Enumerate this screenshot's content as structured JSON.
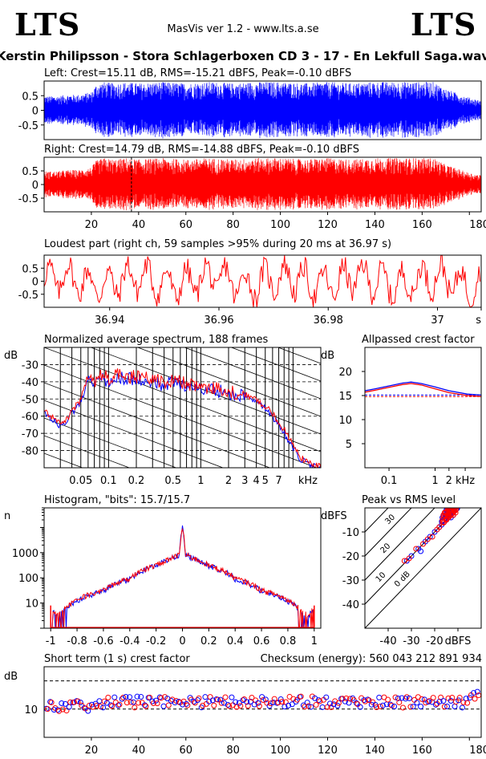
{
  "header": {
    "logo_left": "LTS",
    "logo_right": "LTS",
    "app_title": "MasVis ver 1.2 - www.lts.a.se",
    "file_title": "Kerstin Philipsson - Stora Schlagerboxen CD 3 - 17 - En Lekfull Saga.wav"
  },
  "panels": {
    "left_title": "Left: Crest=15.11 dB, RMS=-15.21 dBFS, Peak=-0.10 dBFS",
    "right_title": "Right: Crest=14.79 dB, RMS=-14.88 dBFS, Peak=-0.10 dBFS",
    "loudest_title": "Loudest part (right ch, 59 samples >95% during 20 ms at 36.97 s)",
    "spectrum_title": "Normalized average spectrum, 188 frames",
    "allpass_title": "Allpassed crest factor",
    "histogram_title": "Histogram, \"bits\": 15.7/15.7",
    "peakrms_title": "Peak vs RMS level",
    "shortterm_title": "Short term (1 s) crest factor",
    "checksum": "Checksum (energy):   560 043 212 891 934"
  },
  "chart_data": [
    {
      "id": "left",
      "type": "area",
      "title": "Left: Crest=15.11 dB, RMS=-15.21 dBFS, Peak=-0.10 dBFS",
      "color": "#0000ff",
      "xlim": [
        0,
        185
      ],
      "ylim": [
        -1,
        1
      ],
      "yticks": [
        "0.5",
        "0",
        "-0.5"
      ],
      "yticks_val": [
        0.5,
        0,
        -0.5
      ],
      "env_t": [
        0,
        5,
        10,
        15,
        20,
        22,
        25,
        30,
        35,
        40,
        50,
        60,
        70,
        80,
        90,
        100,
        110,
        120,
        130,
        140,
        150,
        160,
        165,
        170,
        175,
        178,
        182,
        185
      ],
      "env_a": [
        0.5,
        0.5,
        0.55,
        0.55,
        0.65,
        0.9,
        1.0,
        0.95,
        1.0,
        0.95,
        1.0,
        0.95,
        1.0,
        0.95,
        1.0,
        1.0,
        0.95,
        1.0,
        0.95,
        1.0,
        1.0,
        1.0,
        1.0,
        0.75,
        0.6,
        0.5,
        0.4,
        0.35
      ]
    },
    {
      "id": "right",
      "type": "area",
      "title": "Right: Crest=14.79 dB, RMS=-14.88 dBFS, Peak=-0.10 dBFS",
      "color": "#ff0000",
      "xlim": [
        0,
        185
      ],
      "ylim": [
        -1,
        1
      ],
      "yticks": [
        "0.5",
        "0",
        "-0.5"
      ],
      "yticks_val": [
        0.5,
        0,
        -0.5
      ],
      "xticks": [
        "20",
        "40",
        "60",
        "80",
        "100",
        "120",
        "140",
        "160",
        "180 s"
      ],
      "xticks_val": [
        20,
        40,
        60,
        80,
        100,
        120,
        140,
        160,
        180
      ],
      "marker_x": 36.97,
      "env_t": [
        0,
        5,
        10,
        15,
        20,
        22,
        25,
        30,
        35,
        40,
        50,
        60,
        70,
        80,
        90,
        100,
        110,
        120,
        130,
        140,
        150,
        160,
        165,
        170,
        175,
        178,
        182,
        185
      ],
      "env_a": [
        0.5,
        0.5,
        0.55,
        0.55,
        0.65,
        0.9,
        1.0,
        0.95,
        1.0,
        0.95,
        1.0,
        0.95,
        1.0,
        0.95,
        1.0,
        1.0,
        0.95,
        1.0,
        0.95,
        1.0,
        1.0,
        1.0,
        1.0,
        0.75,
        0.6,
        0.5,
        0.4,
        0.35
      ]
    },
    {
      "id": "loudest",
      "type": "line",
      "title": "Loudest part (right ch, 59 samples >95% during 20 ms at 36.97 s)",
      "color": "#ff0000",
      "xlim": [
        36.928,
        37.008
      ],
      "ylim": [
        -1,
        1
      ],
      "yticks": [
        "0.5",
        "0",
        "-0.5"
      ],
      "yticks_val": [
        0.5,
        0,
        -0.5
      ],
      "xticks": [
        "36.94",
        "36.96",
        "36.98",
        "37",
        "s"
      ],
      "xticks_val": [
        36.94,
        36.96,
        36.98,
        37.0,
        37.008
      ]
    },
    {
      "id": "spectrum",
      "type": "line",
      "title": "Normalized average spectrum, 188 frames",
      "ylabel": "dB",
      "xlabel": "kHz",
      "xscale": "log",
      "xlim": [
        0.02,
        20
      ],
      "ylim": [
        -90,
        -20
      ],
      "yticks": [
        "-30",
        "-40",
        "-50",
        "-60",
        "-70",
        "-80"
      ],
      "yticks_val": [
        -30,
        -40,
        -50,
        -60,
        -70,
        -80
      ],
      "xticks": [
        "0.05",
        "0.1",
        "0.2",
        "0.5",
        "1",
        "2",
        "3",
        "4",
        "5",
        "7",
        "kHz"
      ],
      "xticks_val": [
        0.05,
        0.1,
        0.2,
        0.5,
        1,
        2,
        3,
        4,
        5,
        7,
        14.5
      ],
      "series": [
        {
          "color": "#0000ff",
          "x": [
            0.02,
            0.025,
            0.03,
            0.035,
            0.04,
            0.05,
            0.06,
            0.07,
            0.08,
            0.1,
            0.12,
            0.15,
            0.2,
            0.3,
            0.4,
            0.5,
            0.7,
            1,
            1.5,
            2,
            3,
            4,
            5,
            6,
            7,
            8,
            10,
            12,
            15,
            20
          ],
          "y": [
            -58,
            -62,
            -66,
            -63,
            -58,
            -52,
            -38,
            -42,
            -36,
            -40,
            -37,
            -38,
            -38,
            -39,
            -42,
            -40,
            -42,
            -44,
            -45,
            -47,
            -48,
            -52,
            -55,
            -60,
            -66,
            -70,
            -78,
            -85,
            -88,
            -90
          ]
        },
        {
          "color": "#ff0000",
          "x": [
            0.02,
            0.025,
            0.03,
            0.035,
            0.04,
            0.05,
            0.06,
            0.07,
            0.08,
            0.1,
            0.12,
            0.15,
            0.2,
            0.3,
            0.4,
            0.5,
            0.7,
            1,
            1.5,
            2,
            3,
            4,
            5,
            6,
            7,
            8,
            10,
            12,
            15,
            20
          ],
          "y": [
            -57,
            -61,
            -65,
            -62,
            -57,
            -50,
            -36,
            -40,
            -35,
            -38,
            -36,
            -37,
            -37,
            -38,
            -41,
            -39,
            -41,
            -43,
            -44,
            -46,
            -47,
            -51,
            -54,
            -58,
            -64,
            -68,
            -76,
            -84,
            -87,
            -90
          ]
        }
      ]
    },
    {
      "id": "allpass",
      "type": "line",
      "title": "Allpassed crest factor",
      "ylabel": "dB",
      "xscale": "log",
      "xlim": [
        0.03,
        10
      ],
      "ylim": [
        0,
        25
      ],
      "yticks": [
        "20",
        "15",
        "10",
        "5"
      ],
      "yticks_val": [
        20,
        15,
        10,
        5
      ],
      "xticks": [
        "0.1",
        "1",
        "2",
        "kHz"
      ],
      "xticks_val": [
        0.1,
        1,
        2,
        4.5
      ],
      "dashed_ref": [
        {
          "color": "#0000ff",
          "y": 15.1
        },
        {
          "color": "#ff0000",
          "y": 14.8
        }
      ],
      "series": [
        {
          "color": "#0000ff",
          "x": [
            0.03,
            0.05,
            0.1,
            0.2,
            0.3,
            0.5,
            1,
            2,
            5,
            10
          ],
          "y": [
            16.0,
            16.4,
            17.0,
            17.6,
            17.8,
            17.5,
            16.8,
            16.0,
            15.3,
            15.1
          ]
        },
        {
          "color": "#ff0000",
          "x": [
            0.03,
            0.05,
            0.1,
            0.2,
            0.3,
            0.5,
            1,
            2,
            5,
            10
          ],
          "y": [
            15.7,
            16.1,
            16.7,
            17.3,
            17.5,
            17.2,
            16.4,
            15.6,
            15.0,
            14.8
          ]
        }
      ]
    },
    {
      "id": "histogram",
      "type": "line",
      "title": "Histogram, \"bits\": 15.7/15.7",
      "ylabel": "n",
      "yscale": "log",
      "xlim": [
        -1.05,
        1.05
      ],
      "ylim": [
        1,
        60000
      ],
      "yticks": [
        "1000",
        "100",
        "10"
      ],
      "yticks_val": [
        1000,
        100,
        10
      ],
      "xticks": [
        "-1",
        "-0.8",
        "-0.6",
        "-0.4",
        "-0.2",
        "0",
        "0.2",
        "0.4",
        "0.6",
        "0.8",
        "1"
      ],
      "xticks_val": [
        -1,
        -0.8,
        -0.6,
        -0.4,
        -0.2,
        0,
        0.2,
        0.4,
        0.6,
        0.8,
        1
      ],
      "series": [
        {
          "color": "#0000ff",
          "x": [
            -1.0,
            -0.95,
            -0.9,
            -0.8,
            -0.6,
            -0.4,
            -0.2,
            -0.1,
            -0.02,
            0,
            0.02,
            0.1,
            0.2,
            0.4,
            0.6,
            0.8,
            0.9,
            0.95,
            1.0
          ],
          "y": [
            5,
            3,
            5,
            12,
            30,
            90,
            300,
            550,
            800,
            10000,
            800,
            550,
            300,
            90,
            30,
            12,
            5,
            3,
            5
          ]
        },
        {
          "color": "#ff0000",
          "x": [
            -1.0,
            -0.95,
            -0.9,
            -0.8,
            -0.6,
            -0.4,
            -0.2,
            -0.1,
            -0.02,
            0,
            0.02,
            0.1,
            0.2,
            0.4,
            0.6,
            0.8,
            0.9,
            0.95,
            1.0
          ],
          "y": [
            6,
            3,
            6,
            13,
            32,
            95,
            310,
            560,
            820,
            9000,
            820,
            560,
            310,
            95,
            32,
            13,
            6,
            3,
            6
          ]
        }
      ]
    },
    {
      "id": "peakrms",
      "type": "scatter",
      "title": "Peak vs RMS level",
      "ylabel": "dBFS",
      "xlabel": "dBFS",
      "xlim": [
        -50,
        0
      ],
      "ylim": [
        -50,
        0
      ],
      "yticks": [
        "-10",
        "-20",
        "-30",
        "-40"
      ],
      "yticks_val": [
        -10,
        -20,
        -30,
        -40
      ],
      "xticks": [
        "-40",
        "-30",
        "-20",
        "dBFS"
      ],
      "xticks_val": [
        -40,
        -30,
        -20,
        -10
      ],
      "diag_labels": [
        "40",
        "30",
        "20",
        "10",
        "0 dB"
      ],
      "diag_offsets": [
        40,
        30,
        20,
        10,
        0
      ],
      "series": [
        {
          "color": "#0000ff",
          "x": [
            -32,
            -30,
            -27,
            -26,
            -24,
            -22,
            -20,
            -18,
            -17,
            -16,
            -15,
            -14,
            -13,
            -12,
            -12
          ],
          "y": [
            -22,
            -20,
            -17,
            -18,
            -14,
            -12,
            -10,
            -8,
            -7,
            -6,
            -5,
            -4,
            -4,
            -3,
            -2
          ]
        },
        {
          "color": "#ff0000",
          "x": [
            -33,
            -31,
            -28,
            -25,
            -23,
            -21,
            -19,
            -18,
            -16,
            -15,
            -14,
            -13,
            -12,
            -11,
            -11
          ],
          "y": [
            -22,
            -21,
            -17,
            -15,
            -13,
            -12,
            -9,
            -8,
            -6,
            -5,
            -4,
            -3,
            -3,
            -2,
            -1
          ]
        }
      ]
    },
    {
      "id": "shortterm",
      "type": "scatter",
      "title": "Short term (1 s) crest factor",
      "ylabel": "dB",
      "xlim": [
        0,
        185
      ],
      "ylim": [
        0,
        25
      ],
      "yticks": [
        "10"
      ],
      "yticks_val": [
        10
      ],
      "xticks": [
        "20",
        "40",
        "60",
        "80",
        "100",
        "120",
        "140",
        "160",
        "180 s"
      ],
      "xticks_val": [
        20,
        40,
        60,
        80,
        100,
        120,
        140,
        160,
        180
      ],
      "dashed_ref": [
        {
          "color": "#000000",
          "y": 10
        },
        {
          "color": "#000000",
          "y": 20
        }
      ],
      "mean_crest": 12.5
    }
  ]
}
